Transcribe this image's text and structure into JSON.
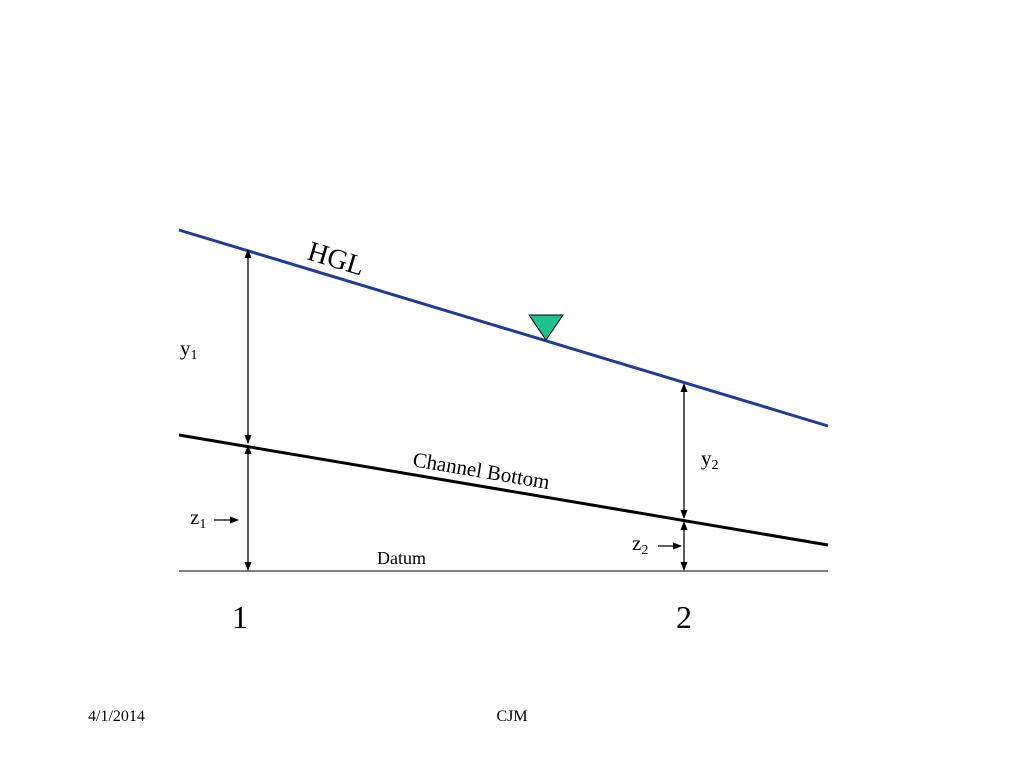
{
  "diagram": {
    "hgl_label": "HGL",
    "channel_bottom_label": "Channel Bottom",
    "datum_label": "Datum",
    "y1": {
      "base": "y",
      "sub": "1"
    },
    "y2": {
      "base": "y",
      "sub": "2"
    },
    "z1": {
      "base": "z",
      "sub": "1"
    },
    "z2": {
      "base": "z",
      "sub": "2"
    },
    "station_1": "1",
    "station_2": "2",
    "colors": {
      "hgl_line": "#1f3c99",
      "water_surface_symbol": "#1fbf8f",
      "lines": "#000000"
    },
    "icons": [
      "water-surface-triangle-icon",
      "arrow-right-icon"
    ]
  },
  "footer": {
    "date": "4/1/2014",
    "author": "CJM"
  }
}
